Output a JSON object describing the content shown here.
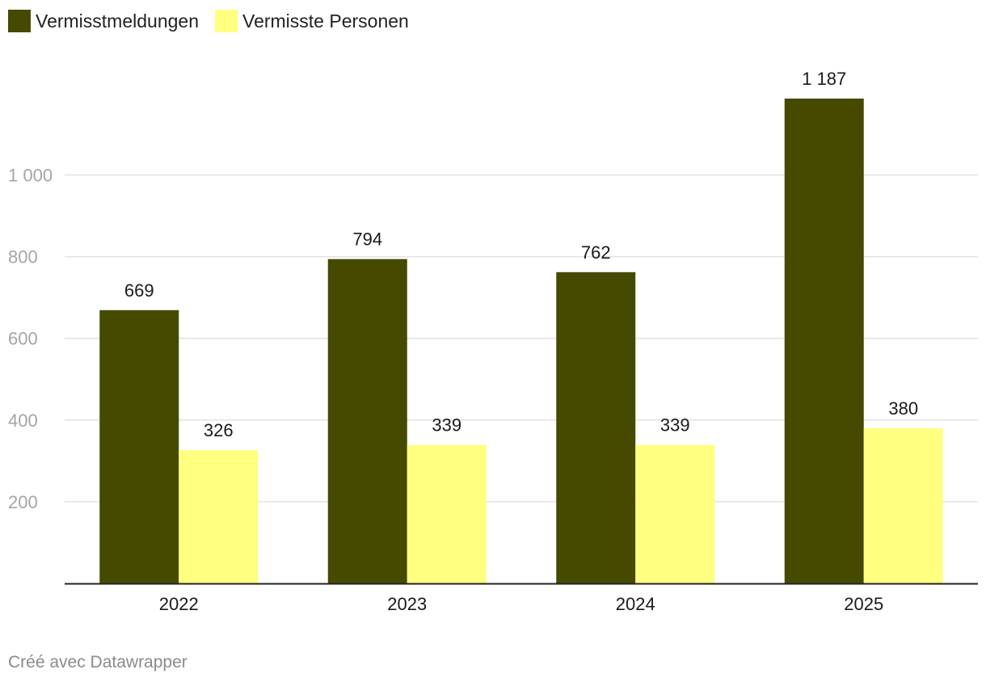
{
  "chart_data": {
    "type": "bar",
    "categories": [
      "2022",
      "2023",
      "2024",
      "2025"
    ],
    "series": [
      {
        "name": "Vermisstmeldungen",
        "color": "#454a00",
        "values": [
          669,
          794,
          762,
          1187
        ],
        "labels": [
          "669",
          "794",
          "762",
          "1 187"
        ]
      },
      {
        "name": "Vermisste Personen",
        "color": "#ffff80",
        "values": [
          326,
          339,
          339,
          380
        ],
        "labels": [
          "326",
          "339",
          "339",
          "380"
        ]
      }
    ],
    "yticks": [
      200,
      400,
      600,
      800,
      1000
    ],
    "ytick_labels": [
      "200",
      "400",
      "600",
      "800",
      "1 000"
    ],
    "ylim": [
      0,
      1200
    ],
    "grid": true,
    "legend": "top-left",
    "title": "",
    "xlabel": "",
    "ylabel": ""
  },
  "footer": {
    "credit": "Créé avec Datawrapper"
  }
}
